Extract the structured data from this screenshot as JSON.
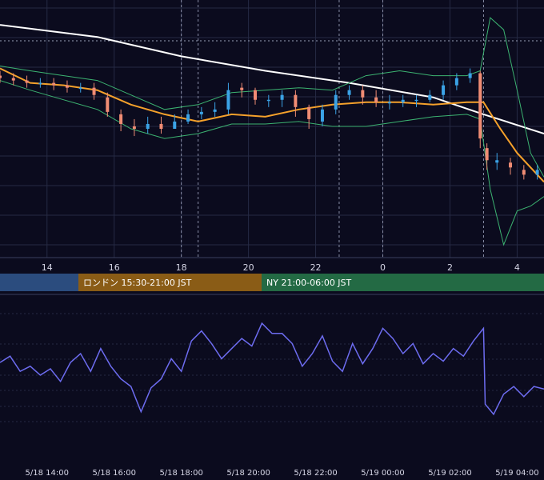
{
  "colors": {
    "background": "#0b0b1e",
    "grid": "#262a44",
    "candle_up": "#3ba3e6",
    "candle_down": "#f08c74",
    "ma_short": "#f5a12b",
    "ma_long": "#ffffff",
    "bollinger": "#3cb371",
    "oscillator": "#6d6cf0",
    "session_tokyo": "#2b4c7e",
    "session_london": "#8a5c16",
    "session_ny": "#236a44"
  },
  "sessions": [
    {
      "label": "",
      "color_key": "session_tokyo"
    },
    {
      "label": "ロンドン 15:30-21:00 JST",
      "color_key": "session_london"
    },
    {
      "label": "NY 21:00-06:00 JST",
      "color_key": "session_ny"
    }
  ],
  "chart_data": [
    {
      "type": "candlestick",
      "x_ticks": [
        "14",
        "16",
        "18",
        "20",
        "22",
        "0",
        "2",
        "4"
      ],
      "x_range_hours": [
        12.6,
        28.8
      ],
      "y_range": [
        0,
        100
      ],
      "grid": true,
      "series": [
        {
          "type": "line",
          "color_key": "ma_long",
          "x": [
            12.6,
            15.5,
            18.0,
            20.5,
            23.0,
            25.5,
            27.0,
            28.8
          ],
          "y": [
            93,
            88,
            80,
            74,
            69,
            63,
            56,
            48
          ]
        },
        {
          "type": "line",
          "color_key": "ma_short",
          "x": [
            12.6,
            13.5,
            14.5,
            15.5,
            16.5,
            17.5,
            18.5,
            19.5,
            20.5,
            21.5,
            22.5,
            23.5,
            24.5,
            25.5,
            26.5,
            27.0,
            27.5,
            28.0,
            28.8
          ],
          "y": [
            75,
            69,
            68,
            66,
            60,
            56,
            53,
            56,
            55,
            58,
            60,
            61,
            61,
            60,
            61,
            61,
            50,
            40,
            28
          ]
        },
        {
          "type": "line",
          "color_key": "bollinger",
          "name": "upper",
          "x": [
            12.6,
            13.5,
            14.5,
            15.5,
            16.5,
            17.5,
            18.5,
            19.5,
            20.5,
            21.5,
            22.5,
            23.5,
            24.5,
            25.5,
            26.5,
            26.9,
            27.2,
            27.6,
            28.0,
            28.4,
            28.8
          ],
          "y": [
            76,
            74,
            72,
            70,
            64,
            58,
            60,
            65,
            66,
            67,
            66,
            72,
            74,
            72,
            72,
            74,
            96,
            91,
            66,
            40,
            30
          ]
        },
        {
          "type": "line",
          "color_key": "bollinger",
          "name": "lower",
          "x": [
            12.6,
            13.5,
            14.5,
            15.5,
            16.5,
            17.5,
            18.5,
            19.5,
            20.5,
            21.5,
            22.5,
            23.5,
            24.5,
            25.5,
            26.5,
            26.9,
            27.2,
            27.6,
            28.0,
            28.4,
            28.8
          ],
          "y": [
            70,
            66,
            62,
            58,
            50,
            46,
            48,
            52,
            52,
            53,
            51,
            51,
            53,
            55,
            56,
            54,
            25,
            2,
            16,
            18,
            22
          ]
        },
        {
          "type": "candles",
          "x": [
            12.6,
            13.0,
            13.4,
            13.8,
            14.2,
            14.6,
            15.0,
            15.4,
            15.8,
            16.2,
            16.6,
            17.0,
            17.4,
            17.8,
            18.2,
            18.6,
            19.0,
            19.4,
            19.8,
            20.2,
            20.6,
            21.0,
            21.4,
            21.8,
            22.2,
            22.6,
            23.0,
            23.4,
            23.8,
            24.2,
            24.6,
            25.0,
            25.4,
            25.8,
            26.2,
            26.6,
            26.9,
            27.1,
            27.4,
            27.8,
            28.2,
            28.6
          ],
          "open": [
            72,
            71,
            70,
            69,
            69,
            68,
            67,
            67,
            63,
            56,
            51,
            50,
            52,
            50,
            53,
            56,
            57,
            58,
            67,
            66,
            62,
            62,
            64,
            59,
            53,
            58,
            64,
            66,
            63,
            61,
            61,
            62,
            62,
            64,
            68,
            71,
            73,
            42,
            36,
            36,
            33,
            31
          ],
          "close": [
            71,
            70,
            69,
            69,
            68,
            67,
            67,
            64,
            57,
            52,
            50,
            52,
            50,
            53,
            56,
            57,
            58,
            66,
            66,
            62,
            62,
            64,
            59,
            54,
            58,
            64,
            66,
            63,
            61,
            61,
            62,
            62,
            64,
            68,
            71,
            73,
            46,
            37,
            37,
            34,
            31,
            33
          ],
          "high": [
            74,
            73,
            72,
            71,
            71,
            70,
            69,
            69,
            65,
            58,
            54,
            55,
            55,
            56,
            58,
            59,
            61,
            69,
            69,
            67,
            64,
            66,
            66,
            60,
            60,
            66,
            68,
            68,
            66,
            64,
            64,
            64,
            66,
            70,
            73,
            75,
            74,
            44,
            40,
            38,
            35,
            35
          ],
          "low": [
            69,
            68,
            67,
            67,
            66,
            65,
            65,
            62,
            55,
            49,
            47,
            48,
            48,
            50,
            52,
            54,
            55,
            56,
            63,
            60,
            59,
            59,
            55,
            50,
            51,
            56,
            62,
            60,
            59,
            58,
            59,
            59,
            61,
            62,
            66,
            69,
            42,
            33,
            33,
            31,
            29,
            29
          ]
        }
      ]
    },
    {
      "type": "line",
      "x_ticks": [
        "5/18 14:00",
        "5/18 16:00",
        "5/18 18:00",
        "5/18 20:00",
        "5/18 22:00",
        "5/19 00:00",
        "5/19 02:00",
        "5/19 04:00"
      ],
      "x_range_hours": [
        12.6,
        28.8
      ],
      "y_range": [
        0,
        100
      ],
      "grid": true,
      "series": [
        {
          "type": "line",
          "color_key": "oscillator",
          "x": [
            12.6,
            12.9,
            13.2,
            13.5,
            13.8,
            14.1,
            14.4,
            14.7,
            15.0,
            15.3,
            15.6,
            15.9,
            16.2,
            16.5,
            16.8,
            17.1,
            17.4,
            17.7,
            18.0,
            18.3,
            18.6,
            18.9,
            19.2,
            19.5,
            19.8,
            20.1,
            20.4,
            20.7,
            21.0,
            21.3,
            21.6,
            21.9,
            22.2,
            22.5,
            22.8,
            23.1,
            23.4,
            23.7,
            24.0,
            24.3,
            24.6,
            24.9,
            25.2,
            25.5,
            25.8,
            26.1,
            26.4,
            26.7,
            27.0,
            27.05,
            27.3,
            27.6,
            27.9,
            28.2,
            28.5,
            28.8
          ],
          "y": [
            55,
            60,
            48,
            52,
            45,
            50,
            40,
            55,
            62,
            48,
            66,
            52,
            42,
            36,
            16,
            35,
            42,
            58,
            48,
            72,
            80,
            70,
            58,
            66,
            74,
            68,
            86,
            78,
            78,
            70,
            52,
            62,
            76,
            56,
            48,
            70,
            54,
            66,
            82,
            74,
            62,
            70,
            54,
            62,
            56,
            66,
            60,
            72,
            82,
            22,
            14,
            30,
            36,
            28,
            36,
            34
          ]
        }
      ]
    }
  ]
}
